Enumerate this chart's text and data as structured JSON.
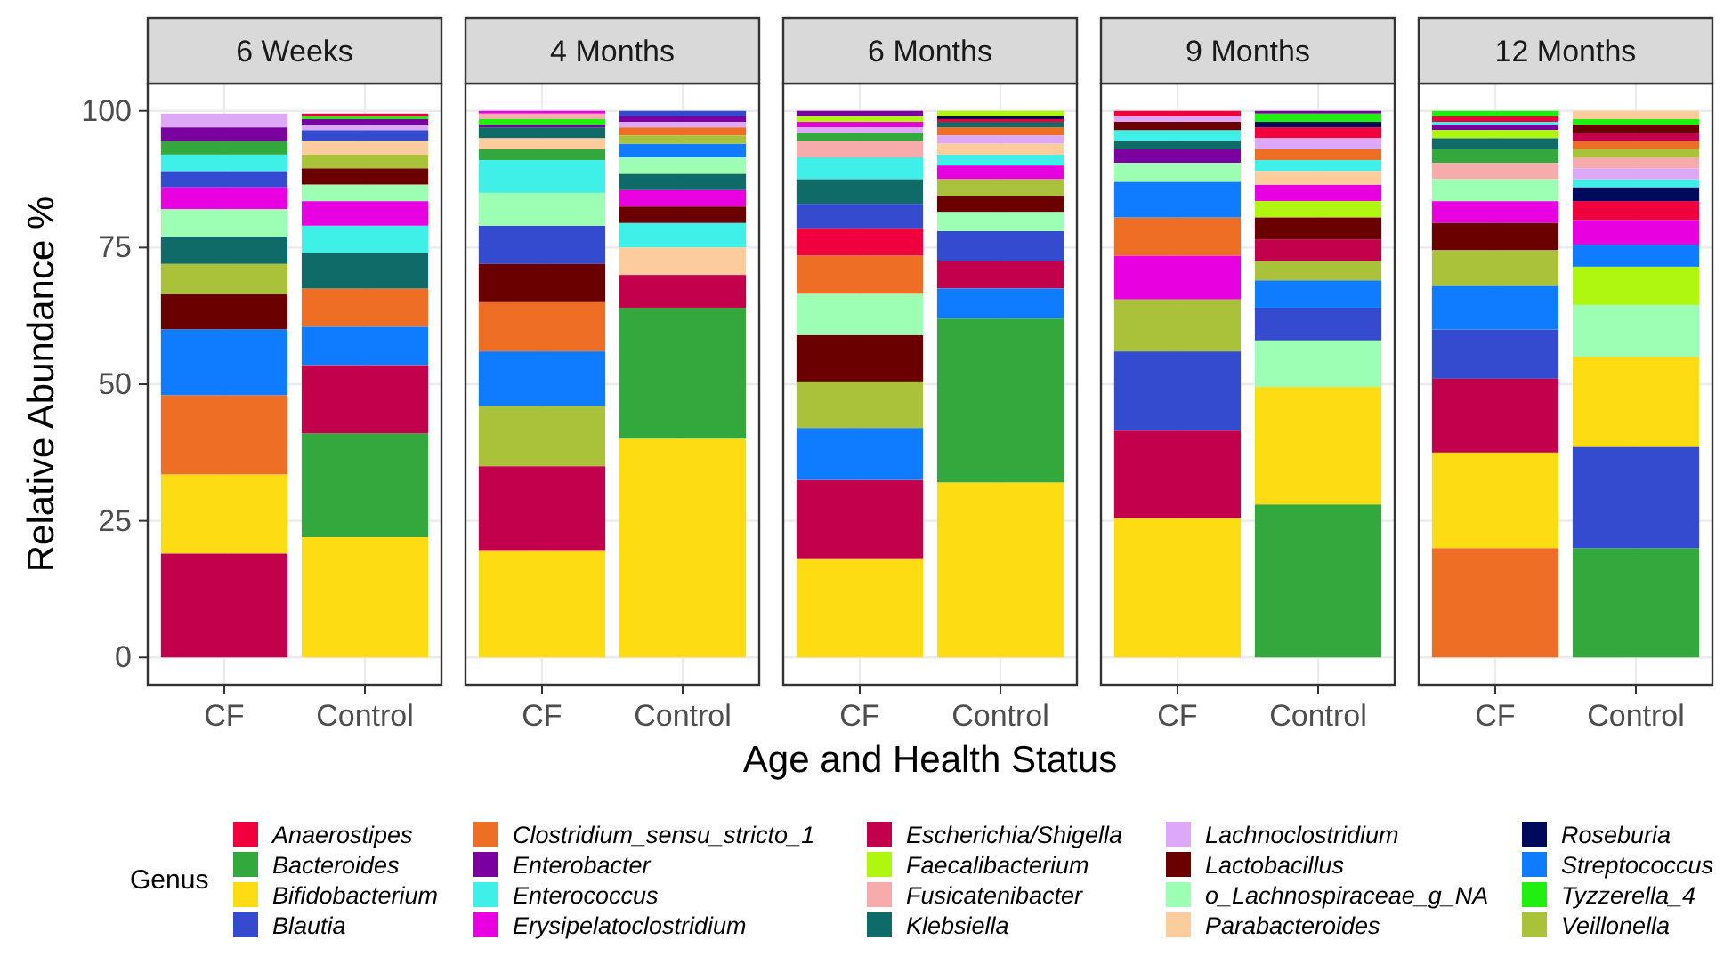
{
  "chart_data": [
    {
      "type": "bar",
      "title": "6 Weeks",
      "ylabel": "Relative Abundance %",
      "categories": [
        "CF",
        "Control"
      ],
      "ylim": [
        -5,
        105
      ],
      "yticks": [
        0,
        25,
        50,
        75,
        100
      ],
      "grid": true,
      "legend": "bottom",
      "legend_title": "Genus",
      "series": [
        {
          "name": "Anaerostipes",
          "color": "#f0003c",
          "values": [
            null,
            0.5
          ],
          "base": [
            null,
            99
          ]
        },
        {
          "name": "Bacteroides",
          "color": "#33a83c",
          "values": [
            2.5,
            19
          ],
          "base": [
            92,
            22
          ]
        },
        {
          "name": "Bifidobacterium",
          "color": "#fddc14",
          "values": [
            14.5,
            22
          ],
          "base": [
            19,
            0
          ]
        },
        {
          "name": "Blautia",
          "color": "#344bcf",
          "values": [
            3,
            2
          ],
          "base": [
            86,
            94.5
          ]
        },
        {
          "name": "Clostridium_sensu_stricto_1",
          "color": "#ef6e25",
          "values": [
            14.5,
            7
          ],
          "base": [
            33.5,
            60.5
          ]
        },
        {
          "name": "Enterobacter",
          "color": "#7a00a0",
          "values": [
            2.5,
            1
          ],
          "base": [
            94.5,
            97.5
          ]
        },
        {
          "name": "Enterococcus",
          "color": "#3ff0e8",
          "values": [
            3,
            5
          ],
          "base": [
            89,
            74
          ]
        },
        {
          "name": "Erysipelatoclostridium",
          "color": "#e800e0",
          "values": [
            4,
            4.5
          ],
          "base": [
            82,
            79
          ]
        },
        {
          "name": "Escherichia/Shigella",
          "color": "#c2004b",
          "values": [
            19,
            12.5
          ],
          "base": [
            0,
            41
          ]
        },
        {
          "name": "Faecalibacterium",
          "color": "#b0f70f",
          "values": [
            null,
            null
          ],
          "base": [
            null,
            null
          ]
        },
        {
          "name": "Fusicatenibacter",
          "color": "#f7abab",
          "values": [
            null,
            null
          ],
          "base": [
            null,
            null
          ]
        },
        {
          "name": "Klebsiella",
          "color": "#0e6b68",
          "values": [
            5,
            6.5
          ],
          "base": [
            72,
            67.5
          ]
        },
        {
          "name": "Lachnoclostridium",
          "color": "#dca8f7",
          "values": [
            2.5,
            1
          ],
          "base": [
            97,
            96.5
          ]
        },
        {
          "name": "Lactobacillus",
          "color": "#6a0000",
          "values": [
            6.5,
            3
          ],
          "base": [
            60,
            86.5
          ]
        },
        {
          "name": "o_Lachnospiraceae_g_NA",
          "color": "#9cffb4",
          "values": [
            5,
            3
          ],
          "base": [
            77,
            83.5
          ]
        },
        {
          "name": "Parabacteroides",
          "color": "#fdcc9c",
          "values": [
            null,
            2.5
          ],
          "base": [
            null,
            92
          ]
        },
        {
          "name": "Roseburia",
          "color": "#000a5c",
          "values": [
            null,
            null
          ],
          "base": [
            null,
            null
          ]
        },
        {
          "name": "Streptococcus",
          "color": "#0f7cff",
          "values": [
            12,
            7
          ],
          "base": [
            48,
            53.5
          ]
        },
        {
          "name": "Tyzzerella_4",
          "color": "#20f010",
          "values": [
            null,
            0.5
          ],
          "base": [
            null,
            98.5
          ]
        },
        {
          "name": "Veillonella",
          "color": "#a9c23a",
          "values": [
            5.5,
            2.5
          ],
          "base": [
            66.5,
            89.5
          ]
        }
      ]
    },
    {
      "type": "bar",
      "title": "4 Months",
      "categories": [
        "CF",
        "Control"
      ],
      "ylim": [
        -5,
        105
      ],
      "yticks": [
        0,
        25,
        50,
        75,
        100
      ],
      "grid": true,
      "tick_labels": "x",
      "series": [
        {
          "color": "#33a83c",
          "values": [
            2,
            24
          ],
          "base": [
            91,
            40
          ]
        },
        {
          "color": "#fddc14",
          "values": [
            19.5,
            40
          ],
          "base": [
            0,
            0
          ]
        },
        {
          "color": "#344bcf",
          "values": [
            7,
            1
          ],
          "base": [
            72,
            99
          ]
        },
        {
          "color": "#ef6e25",
          "values": [
            9,
            1.5
          ],
          "base": [
            56,
            95.5
          ]
        },
        {
          "color": "#7a00a0",
          "values": [
            0.5,
            1
          ],
          "base": [
            97,
            98
          ]
        },
        {
          "color": "#3ff0e8",
          "values": [
            6,
            4.5
          ],
          "base": [
            85,
            75
          ]
        },
        {
          "color": "#e800e0",
          "values": [
            0.5,
            3
          ],
          "base": [
            99.5,
            82.5
          ]
        },
        {
          "color": "#c2004b",
          "values": [
            15.5,
            6
          ],
          "base": [
            19.5,
            64
          ]
        },
        {
          "color": "#f7abab",
          "values": [
            1,
            null
          ],
          "base": [
            98.5,
            null
          ]
        },
        {
          "color": "#0e6b68",
          "values": [
            2,
            3
          ],
          "base": [
            95,
            85.5
          ]
        },
        {
          "color": "#dca8f7",
          "values": [
            null,
            1
          ],
          "base": [
            null,
            97
          ]
        },
        {
          "color": "#6a0000",
          "values": [
            7,
            3
          ],
          "base": [
            65,
            79.5
          ]
        },
        {
          "color": "#9cffb4",
          "values": [
            6,
            3
          ],
          "base": [
            79,
            88.5
          ]
        },
        {
          "color": "#fdcc9c",
          "values": [
            2,
            5
          ],
          "base": [
            93,
            70
          ]
        },
        {
          "color": "#0f7cff",
          "values": [
            10,
            2.5
          ],
          "base": [
            46,
            91.5
          ]
        },
        {
          "color": "#20f010",
          "values": [
            1,
            null
          ],
          "base": [
            97.5,
            null
          ]
        },
        {
          "color": "#a9c23a",
          "values": [
            11,
            1.5
          ],
          "base": [
            35,
            94
          ]
        }
      ]
    },
    {
      "type": "bar",
      "title": "6 Months",
      "xlabel": "Age and Health Status",
      "categories": [
        "CF",
        "Control"
      ],
      "ylim": [
        -5,
        105
      ],
      "yticks": [
        0,
        25,
        50,
        75,
        100
      ],
      "grid": true,
      "tick_labels": "x",
      "series": [
        {
          "color": "#f0003c",
          "values": [
            5,
            0.5
          ],
          "base": [
            73.5,
            98
          ]
        },
        {
          "color": "#33a83c",
          "values": [
            1.5,
            30
          ],
          "base": [
            94.5,
            32
          ]
        },
        {
          "color": "#fddc14",
          "values": [
            18,
            32
          ],
          "base": [
            0,
            0
          ]
        },
        {
          "color": "#344bcf",
          "values": [
            4.5,
            5.5
          ],
          "base": [
            78.5,
            72.5
          ]
        },
        {
          "color": "#ef6e25",
          "values": [
            7,
            1.5
          ],
          "base": [
            66.5,
            95.5
          ]
        },
        {
          "color": "#7a00a0",
          "values": [
            1,
            null
          ],
          "base": [
            99,
            null
          ]
        },
        {
          "color": "#3ff0e8",
          "values": [
            4,
            2
          ],
          "base": [
            87.5,
            90
          ]
        },
        {
          "color": "#e800e0",
          "values": [
            1,
            2.5
          ],
          "base": [
            97,
            87.5
          ]
        },
        {
          "color": "#c2004b",
          "values": [
            14.5,
            5
          ],
          "base": [
            18,
            67.5
          ]
        },
        {
          "color": "#b0f70f",
          "values": [
            1,
            1
          ],
          "base": [
            98,
            99
          ]
        },
        {
          "color": "#f7abab",
          "values": [
            3,
            null
          ],
          "base": [
            91.5,
            null
          ]
        },
        {
          "color": "#0e6b68",
          "values": [
            4.5,
            1
          ],
          "base": [
            83,
            97
          ]
        },
        {
          "color": "#dca8f7",
          "values": [
            1,
            1.5
          ],
          "base": [
            96,
            94
          ]
        },
        {
          "color": "#6a0000",
          "values": [
            8.5,
            3
          ],
          "base": [
            50.5,
            81.5
          ]
        },
        {
          "color": "#9cffb4",
          "values": [
            7.5,
            3.5
          ],
          "base": [
            59,
            78
          ]
        },
        {
          "color": "#fdcc9c",
          "values": [
            null,
            2
          ],
          "base": [
            null,
            92
          ]
        },
        {
          "color": "#000a5c",
          "values": [
            null,
            0.5
          ],
          "base": [
            null,
            98.5
          ]
        },
        {
          "color": "#0f7cff",
          "values": [
            9.5,
            5.5
          ],
          "base": [
            32.5,
            62
          ]
        },
        {
          "color": "#a9c23a",
          "values": [
            8.5,
            3
          ],
          "base": [
            42,
            84.5
          ]
        }
      ]
    },
    {
      "type": "bar",
      "title": "9 Months",
      "categories": [
        "CF",
        "Control"
      ],
      "ylim": [
        -5,
        105
      ],
      "yticks": [
        0,
        25,
        50,
        75,
        100
      ],
      "grid": true,
      "tick_labels": "x",
      "series": [
        {
          "color": "#f0003c",
          "values": [
            1,
            2
          ],
          "base": [
            99,
            95
          ]
        },
        {
          "color": "#33a83c",
          "values": [
            null,
            28
          ],
          "base": [
            null,
            0
          ]
        },
        {
          "color": "#fddc14",
          "values": [
            25.5,
            21.5
          ],
          "base": [
            0,
            28
          ]
        },
        {
          "color": "#344bcf",
          "values": [
            14.5,
            6
          ],
          "base": [
            41.5,
            58
          ]
        },
        {
          "color": "#ef6e25",
          "values": [
            7,
            2
          ],
          "base": [
            73.5,
            91
          ]
        },
        {
          "color": "#7a00a0",
          "values": [
            2.5,
            0.5
          ],
          "base": [
            90.5,
            99.5
          ]
        },
        {
          "color": "#3ff0e8",
          "values": [
            2,
            2
          ],
          "base": [
            94.5,
            89
          ]
        },
        {
          "color": "#e800e0",
          "values": [
            8,
            3
          ],
          "base": [
            65.5,
            83.5
          ]
        },
        {
          "color": "#c2004b",
          "values": [
            16,
            4
          ],
          "base": [
            25.5,
            72.5
          ]
        },
        {
          "color": "#b0f70f",
          "values": [
            null,
            3
          ],
          "base": [
            null,
            80.5
          ]
        },
        {
          "color": "#0e6b68",
          "values": [
            1.5,
            null
          ],
          "base": [
            93,
            null
          ]
        },
        {
          "color": "#dca8f7",
          "values": [
            1,
            2
          ],
          "base": [
            98,
            93
          ]
        },
        {
          "color": "#6a0000",
          "values": [
            1.5,
            4
          ],
          "base": [
            96.5,
            76.5
          ]
        },
        {
          "color": "#9cffb4",
          "values": [
            3.5,
            8.5
          ],
          "base": [
            87,
            49.5
          ]
        },
        {
          "color": "#fdcc9c",
          "values": [
            null,
            2.5
          ],
          "base": [
            null,
            86.5
          ]
        },
        {
          "color": "#000a5c",
          "values": [
            null,
            1
          ],
          "base": [
            null,
            97
          ]
        },
        {
          "color": "#0f7cff",
          "values": [
            6.5,
            5
          ],
          "base": [
            80.5,
            64
          ]
        },
        {
          "color": "#20f010",
          "values": [
            null,
            1.5
          ],
          "base": [
            null,
            98
          ]
        },
        {
          "color": "#a9c23a",
          "values": [
            9.5,
            3.5
          ],
          "base": [
            56,
            69
          ]
        }
      ]
    },
    {
      "type": "bar",
      "title": "12 Months",
      "categories": [
        "CF",
        "Control"
      ],
      "ylim": [
        -5,
        105
      ],
      "yticks": [
        0,
        25,
        50,
        75,
        100
      ],
      "grid": true,
      "tick_labels": "x",
      "series": [
        {
          "color": "#f0003c",
          "values": [
            1,
            3.5
          ],
          "base": [
            98,
            80
          ]
        },
        {
          "color": "#33a83c",
          "values": [
            2.5,
            20
          ],
          "base": [
            90.5,
            0
          ]
        },
        {
          "color": "#fddc14",
          "values": [
            17.5,
            16.5
          ],
          "base": [
            20,
            38.5
          ]
        },
        {
          "color": "#344bcf",
          "values": [
            9,
            18.5
          ],
          "base": [
            51,
            20
          ]
        },
        {
          "color": "#ef6e25",
          "values": [
            20,
            1.5
          ],
          "base": [
            0,
            93
          ]
        },
        {
          "color": "#7a00a0",
          "values": [
            1,
            null
          ],
          "base": [
            96.5,
            null
          ]
        },
        {
          "color": "#3ff0e8",
          "values": [
            0.5,
            1.5
          ],
          "base": [
            97.5,
            86
          ]
        },
        {
          "color": "#e800e0",
          "values": [
            4,
            4.5
          ],
          "base": [
            79.5,
            75.5
          ]
        },
        {
          "color": "#c2004b",
          "values": [
            13.5,
            1.5
          ],
          "base": [
            37.5,
            94.5
          ]
        },
        {
          "color": "#b0f70f",
          "values": [
            1.5,
            7
          ],
          "base": [
            95,
            64.5
          ]
        },
        {
          "color": "#f7abab",
          "values": [
            3,
            2
          ],
          "base": [
            87.5,
            89.5
          ]
        },
        {
          "color": "#0e6b68",
          "values": [
            2,
            null
          ],
          "base": [
            93,
            null
          ]
        },
        {
          "color": "#dca8f7",
          "values": [
            null,
            2
          ],
          "base": [
            null,
            87.5
          ]
        },
        {
          "color": "#6a0000",
          "values": [
            5,
            1.5
          ],
          "base": [
            74.5,
            96
          ]
        },
        {
          "color": "#9cffb4",
          "values": [
            4,
            9.5
          ],
          "base": [
            83.5,
            55
          ]
        },
        {
          "color": "#fdcc9c",
          "values": [
            null,
            1.5
          ],
          "base": [
            null,
            98.5
          ]
        },
        {
          "color": "#000a5c",
          "values": [
            null,
            2.5
          ],
          "base": [
            null,
            83.5
          ]
        },
        {
          "color": "#0f7cff",
          "values": [
            8,
            4
          ],
          "base": [
            60,
            71.5
          ]
        },
        {
          "color": "#20f010",
          "values": [
            1,
            1
          ],
          "base": [
            99,
            97.5
          ]
        },
        {
          "color": "#a9c23a",
          "values": [
            6.5,
            1.5
          ],
          "base": [
            68,
            91.5
          ]
        }
      ]
    }
  ]
}
